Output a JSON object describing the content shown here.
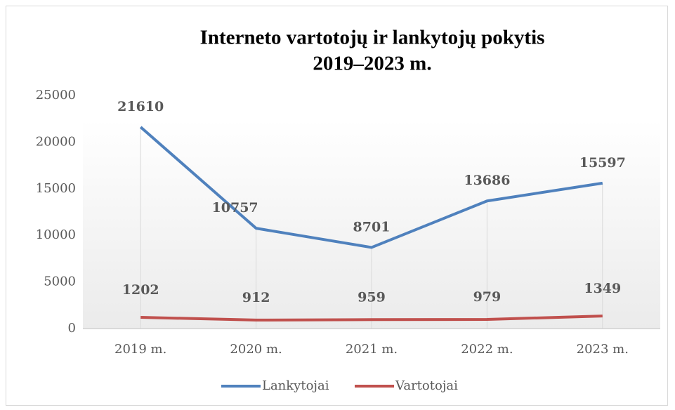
{
  "chart_data": {
    "type": "line",
    "title": [
      "Interneto vartotojų ir lankytojų pokytis",
      "2019–2023 m."
    ],
    "categories": [
      "2019 m.",
      "2020 m.",
      "2021 m.",
      "2022 m.",
      "2023 m."
    ],
    "series": [
      {
        "name": "Lankytojai",
        "color": "#4f81bd",
        "values": [
          21610,
          10757,
          8701,
          13686,
          15597
        ]
      },
      {
        "name": "Vartotojai",
        "color": "#c0504d",
        "values": [
          1202,
          912,
          959,
          979,
          1349
        ]
      }
    ],
    "ylim": [
      0,
      25000
    ],
    "yticks": [
      0,
      5000,
      10000,
      15000,
      20000,
      25000
    ],
    "legend": "bottom"
  }
}
